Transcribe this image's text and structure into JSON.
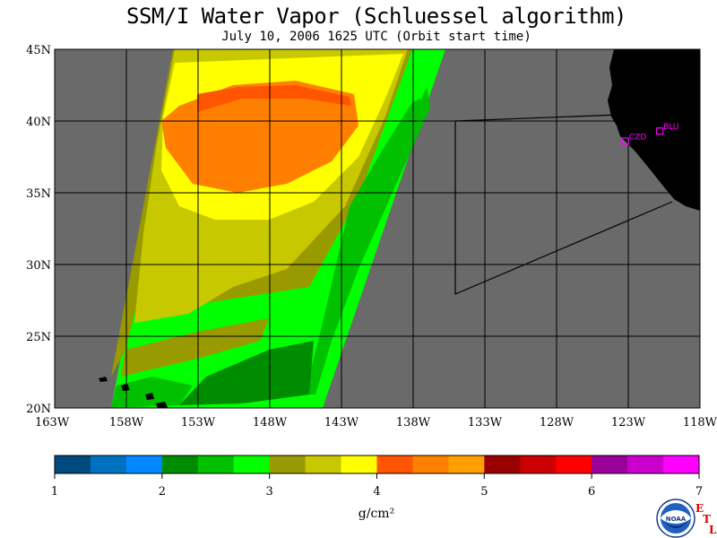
{
  "header": {
    "title": "SSM/I Water Vapor (Schluessel algorithm)",
    "subtitle": "July 10, 2006  1625 UTC  (Orbit start time)"
  },
  "map": {
    "lat_range": [
      20,
      45
    ],
    "lon_range": [
      -163,
      -118
    ],
    "lat_ticks": [
      "45N",
      "40N",
      "35N",
      "30N",
      "25N",
      "20N"
    ],
    "lon_ticks": [
      "163W",
      "158W",
      "153W",
      "148W",
      "143W",
      "138W",
      "133W",
      "128W",
      "123W",
      "118W"
    ],
    "grid": true,
    "no_data_color": "#6a6a6a",
    "land_color": "#000000",
    "stations": [
      {
        "code": "CZD",
        "lat": 38.6,
        "lon": -123.2
      },
      {
        "code": "BLU",
        "lat": 39.3,
        "lon": -120.8
      }
    ]
  },
  "colorbar": {
    "colors": [
      "#004a80",
      "#0070c0",
      "#0088ff",
      "#008c00",
      "#00c000",
      "#00ff00",
      "#999900",
      "#c8c800",
      "#ffff00",
      "#ff5500",
      "#ff8000",
      "#ffa000",
      "#990000",
      "#cc0000",
      "#ff0000",
      "#990099",
      "#cc00cc",
      "#ff00ff"
    ],
    "tick_labels": [
      "1",
      "2",
      "3",
      "4",
      "5",
      "6",
      "7"
    ],
    "units": "g/cm²"
  },
  "branding": {
    "logo": "noaa-logo",
    "logo_text": "NOAA",
    "etl": [
      "E",
      "T",
      "L"
    ]
  }
}
